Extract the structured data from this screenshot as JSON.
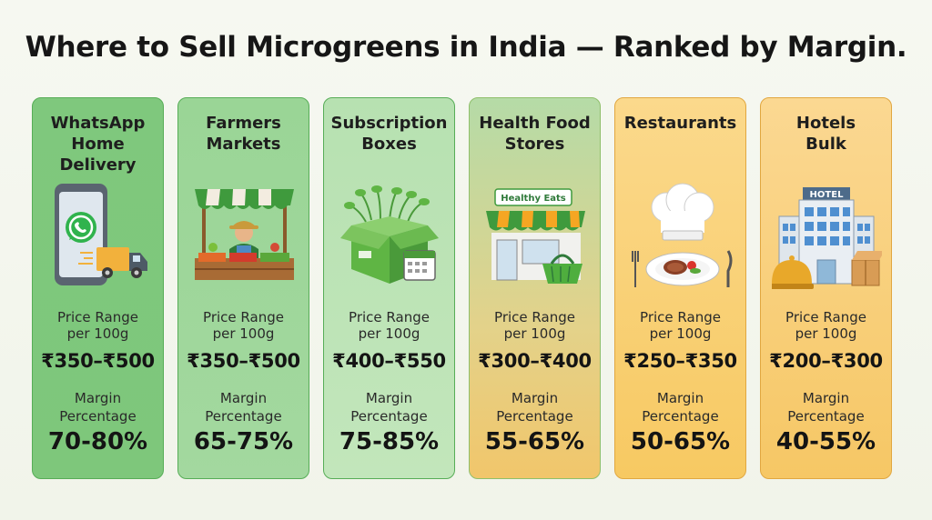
{
  "title": "Where to Sell Microgreens in India — Ranked by Margin.",
  "cards": [
    {
      "title_lines": [
        "WhatsApp",
        "Home Delivery"
      ],
      "icon": "whatsapp-phone-delivery-truck",
      "price_label_lines": [
        "Price Range",
        "per 100g"
      ],
      "price": "₹350–₹500",
      "margin_label_lines": [
        "Margin",
        "Percentage"
      ],
      "margin": "70-80%"
    },
    {
      "title_lines": [
        "Farmers",
        "Markets"
      ],
      "icon": "market-stall-farmer",
      "price_label_lines": [
        "Price Range",
        "per 100g"
      ],
      "price": "₹350–₹500",
      "margin_label_lines": [
        "Margin",
        "Percentage"
      ],
      "margin": "65-75%"
    },
    {
      "title_lines": [
        "Subscription",
        "Boxes"
      ],
      "icon": "microgreens-box-calendar",
      "price_label_lines": [
        "Price Range",
        "per 100g"
      ],
      "price": "₹400–₹550",
      "margin_label_lines": [
        "Margin",
        "Percentage"
      ],
      "margin": "75-85%"
    },
    {
      "title_lines": [
        "Health Food",
        "Stores"
      ],
      "icon": "storefront-basket",
      "store_sign": "Healthy Eats",
      "price_label_lines": [
        "Price Range",
        "per 100g"
      ],
      "price": "₹300–₹400",
      "margin_label_lines": [
        "Margin",
        "Percentage"
      ],
      "margin": "55-65%"
    },
    {
      "title_lines": [
        "Restaurants",
        ""
      ],
      "icon": "chef-hat-plate",
      "price_label_lines": [
        "Price Range",
        "per 100g"
      ],
      "price": "₹250–₹350",
      "margin_label_lines": [
        "Margin",
        "Percentage"
      ],
      "margin": "50-65%"
    },
    {
      "title_lines": [
        "Hotels",
        "Bulk"
      ],
      "icon": "hotel-building-bell",
      "hotel_sign": "HOTEL",
      "price_label_lines": [
        "Price Range",
        "per 100g"
      ],
      "price": "₹200–₹300",
      "margin_label_lines": [
        "Margin",
        "Percentage"
      ],
      "margin": "40-55%"
    }
  ]
}
